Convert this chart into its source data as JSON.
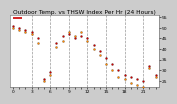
{
  "title": "Outdoor Temp. vs THSW Index Per Hr (24 Hours)",
  "hours": [
    0,
    1,
    2,
    3,
    4,
    5,
    6,
    7,
    8,
    9,
    10,
    11,
    12,
    13,
    14,
    15,
    16,
    17,
    18,
    19,
    20,
    21,
    22,
    23
  ],
  "temp": [
    51,
    50,
    49,
    48,
    45,
    26,
    29,
    43,
    46,
    47,
    45,
    46,
    45,
    42,
    39,
    36,
    33,
    30,
    28,
    27,
    26,
    25,
    32,
    28
  ],
  "thsw": [
    50,
    49,
    48,
    47,
    43,
    25,
    28,
    41,
    44,
    48,
    46,
    48,
    44,
    40,
    37,
    33,
    30,
    27,
    26,
    24,
    23,
    22,
    31,
    27
  ],
  "temp_color": "#cc0000",
  "thsw_color": "#ff8800",
  "dot_color": "#222222",
  "bg_color": "#cccccc",
  "plot_bg": "#ffffff",
  "grid_color": "#999999",
  "ylim": [
    22,
    56
  ],
  "yticks": [
    25,
    30,
    35,
    40,
    45,
    50,
    55
  ],
  "xlim": [
    -0.5,
    23.5
  ],
  "xtick_hours": [
    0,
    1,
    2,
    3,
    4,
    5,
    6,
    7,
    8,
    9,
    10,
    11,
    12,
    13,
    14,
    15,
    16,
    17,
    18,
    19,
    20,
    21,
    22,
    23
  ],
  "xtick_labels": [
    "0",
    "",
    "",
    "3",
    "",
    "",
    "6",
    "",
    "",
    "9",
    "",
    "",
    "12",
    "",
    "",
    "15",
    "",
    "",
    "18",
    "",
    "",
    "21",
    "",
    ""
  ],
  "vgrid_hours": [
    3,
    6,
    9,
    12,
    15,
    18,
    21
  ],
  "title_fontsize": 4.2,
  "tick_fontsize": 3.2
}
